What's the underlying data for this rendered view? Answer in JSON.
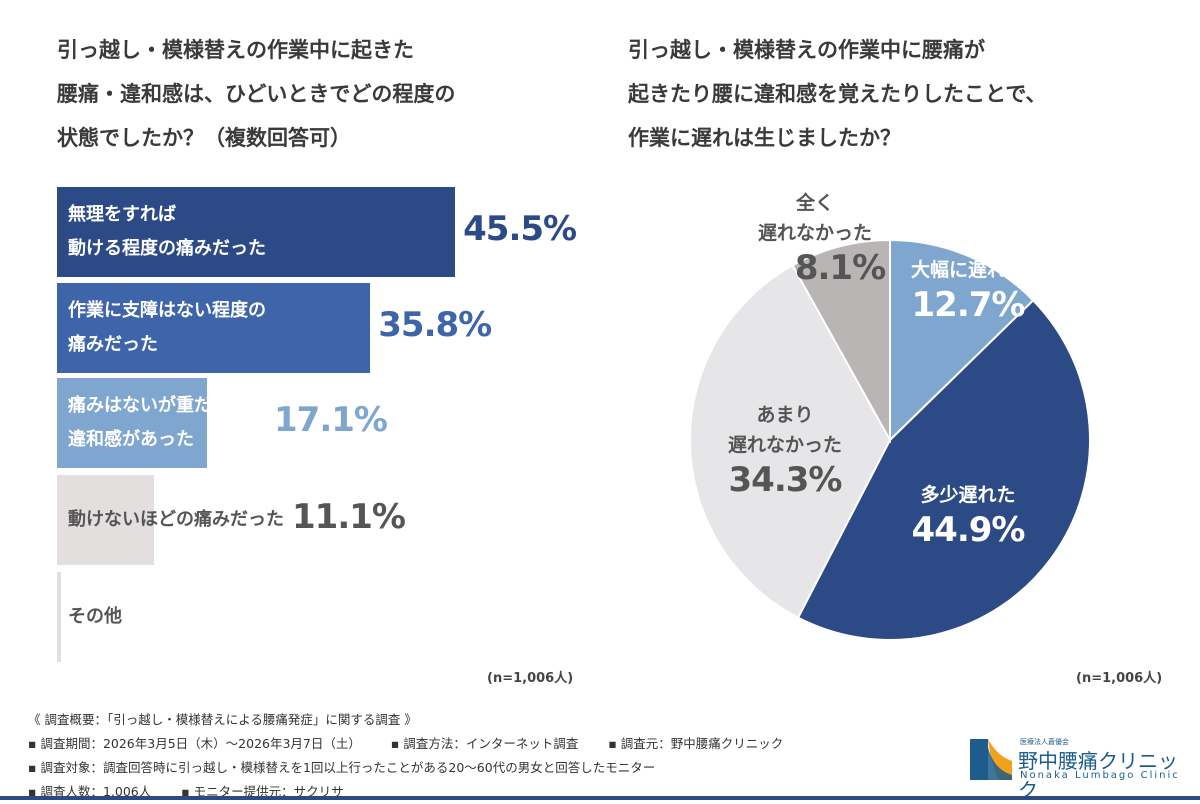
{
  "chart_data": [
    {
      "type": "bar",
      "orientation": "horizontal",
      "title": "引っ越し・模様替えの作業中に起きた\n腰痛・違和感は、ひどいときでどの程度の\n状態でしたか？（複数回答可）",
      "categories": [
        "無理をすれば\n動ける程度の痛みだった",
        "作業に支障はない程度の\n痛みだった",
        "痛みはないが重だるさや\n違和感があった",
        "動けないほどの痛みだった",
        "その他"
      ],
      "values": [
        45.5,
        35.8,
        17.1,
        11.1,
        null
      ],
      "labels": [
        "45.5%",
        "35.8%",
        "17.1%",
        "11.1%",
        ""
      ],
      "colors": [
        "#2c4a86",
        "#3e64a9",
        "#7fa6cf",
        "#e3dfdf",
        "#e3dfdf"
      ],
      "note": "(n=1,006人)"
    },
    {
      "type": "pie",
      "title": "引っ越し・模様替えの作業中に腰痛が\n起きたり腰に違和感を覚えたりしたことで、\n作業に遅れは生じましたか？",
      "slices": [
        {
          "label": "大幅に遅れた",
          "value": 12.7,
          "text": "12.7%",
          "color": "#7fa6cf"
        },
        {
          "label": "多少遅れた",
          "value": 44.9,
          "text": "44.9%",
          "color": "#2c4a86"
        },
        {
          "label": "あまり\n遅れなかった",
          "value": 34.3,
          "text": "34.3%",
          "color": "#e6e5e8"
        },
        {
          "label": "全く\n遅れなかった",
          "value": 8.1,
          "text": "8.1%",
          "color": "#b9b5b4"
        }
      ],
      "note": "(n=1,006人)"
    }
  ],
  "footer": {
    "line1": "《 調査概要：「引っ越し・模様替えによる腰痛発症」に関する調査 》",
    "line2a": "▪ 調査期間：2026年3月5日（木）〜2026年3月7日（土）",
    "line2b": "▪ 調査方法：インターネット調査",
    "line2c": "▪ 調査元：野中腰痛クリニック",
    "line3": "▪ 調査対象：調査回答時に引っ越し・模様替えを1回以上行ったことがある20〜60代の男女と回答したモニター",
    "line4a": "▪ 調査人数：1,006人",
    "line4b": "▪ モニター提供元：サクリサ"
  },
  "logo": {
    "small": "医療法人蒼優会",
    "name": "野中腰痛クリニック",
    "en": "Nonaka Lumbago Clinic"
  }
}
